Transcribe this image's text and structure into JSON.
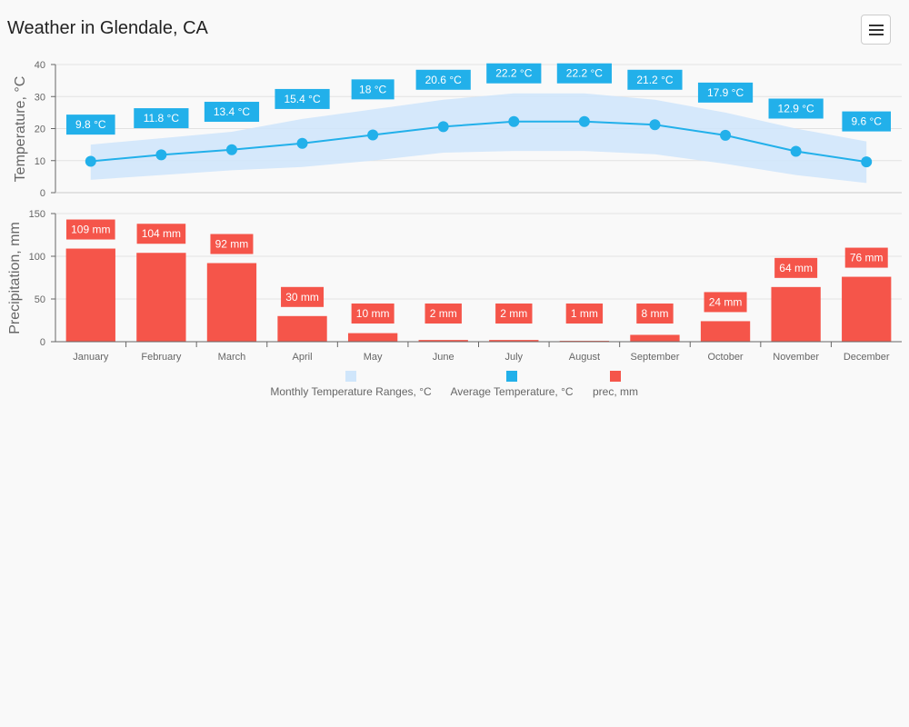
{
  "header": {
    "title": "Weather in Glendale, CA"
  },
  "chart_data": {
    "type": "line+bar",
    "categories": [
      "January",
      "February",
      "March",
      "April",
      "May",
      "June",
      "July",
      "August",
      "September",
      "October",
      "November",
      "December"
    ],
    "temperature": {
      "ylabel": "Temperature, °C",
      "ylim": [
        0,
        40
      ],
      "yticks": [
        "0",
        "10",
        "20",
        "30",
        "40"
      ],
      "range_low": [
        4,
        5.5,
        7,
        8,
        10,
        12.5,
        13,
        13,
        12,
        9,
        5.5,
        3
      ],
      "range_high": [
        15,
        17,
        19,
        23,
        26,
        29,
        31,
        31,
        29,
        25,
        20,
        16
      ],
      "avg": [
        9.8,
        11.8,
        13.4,
        15.4,
        18,
        20.6,
        22.2,
        22.2,
        21.2,
        17.9,
        12.9,
        9.6
      ],
      "avg_labels": [
        "9.8 °C",
        "11.8 °C",
        "13.4 °C",
        "15.4 °C",
        "18 °C",
        "20.6 °C",
        "22.2 °C",
        "22.2 °C",
        "21.2 °C",
        "17.9 °C",
        "12.9 °C",
        "9.6 °C"
      ]
    },
    "precipitation": {
      "ylabel": "Precipitation, mm",
      "ylim": [
        0,
        150
      ],
      "yticks": [
        "0",
        "50",
        "100",
        "150"
      ],
      "values": [
        109,
        104,
        92,
        30,
        10,
        2,
        2,
        1,
        8,
        24,
        64,
        76
      ],
      "labels": [
        "109 mm",
        "104 mm",
        "92 mm",
        "30 mm",
        "10 mm",
        "2 mm",
        "2 mm",
        "1 mm",
        "8 mm",
        "24 mm",
        "64 mm",
        "76 mm"
      ]
    },
    "legend": [
      "Monthly Temperature Ranges, °C",
      "Average Temperature, °C",
      "prec, mm"
    ],
    "legend_placement": "bottom",
    "colors": {
      "range": "#d0e6fb",
      "avg": "#22b0ea",
      "prec": "#f5554a",
      "grid": "#e2e2e2",
      "axis": "#666666"
    }
  }
}
